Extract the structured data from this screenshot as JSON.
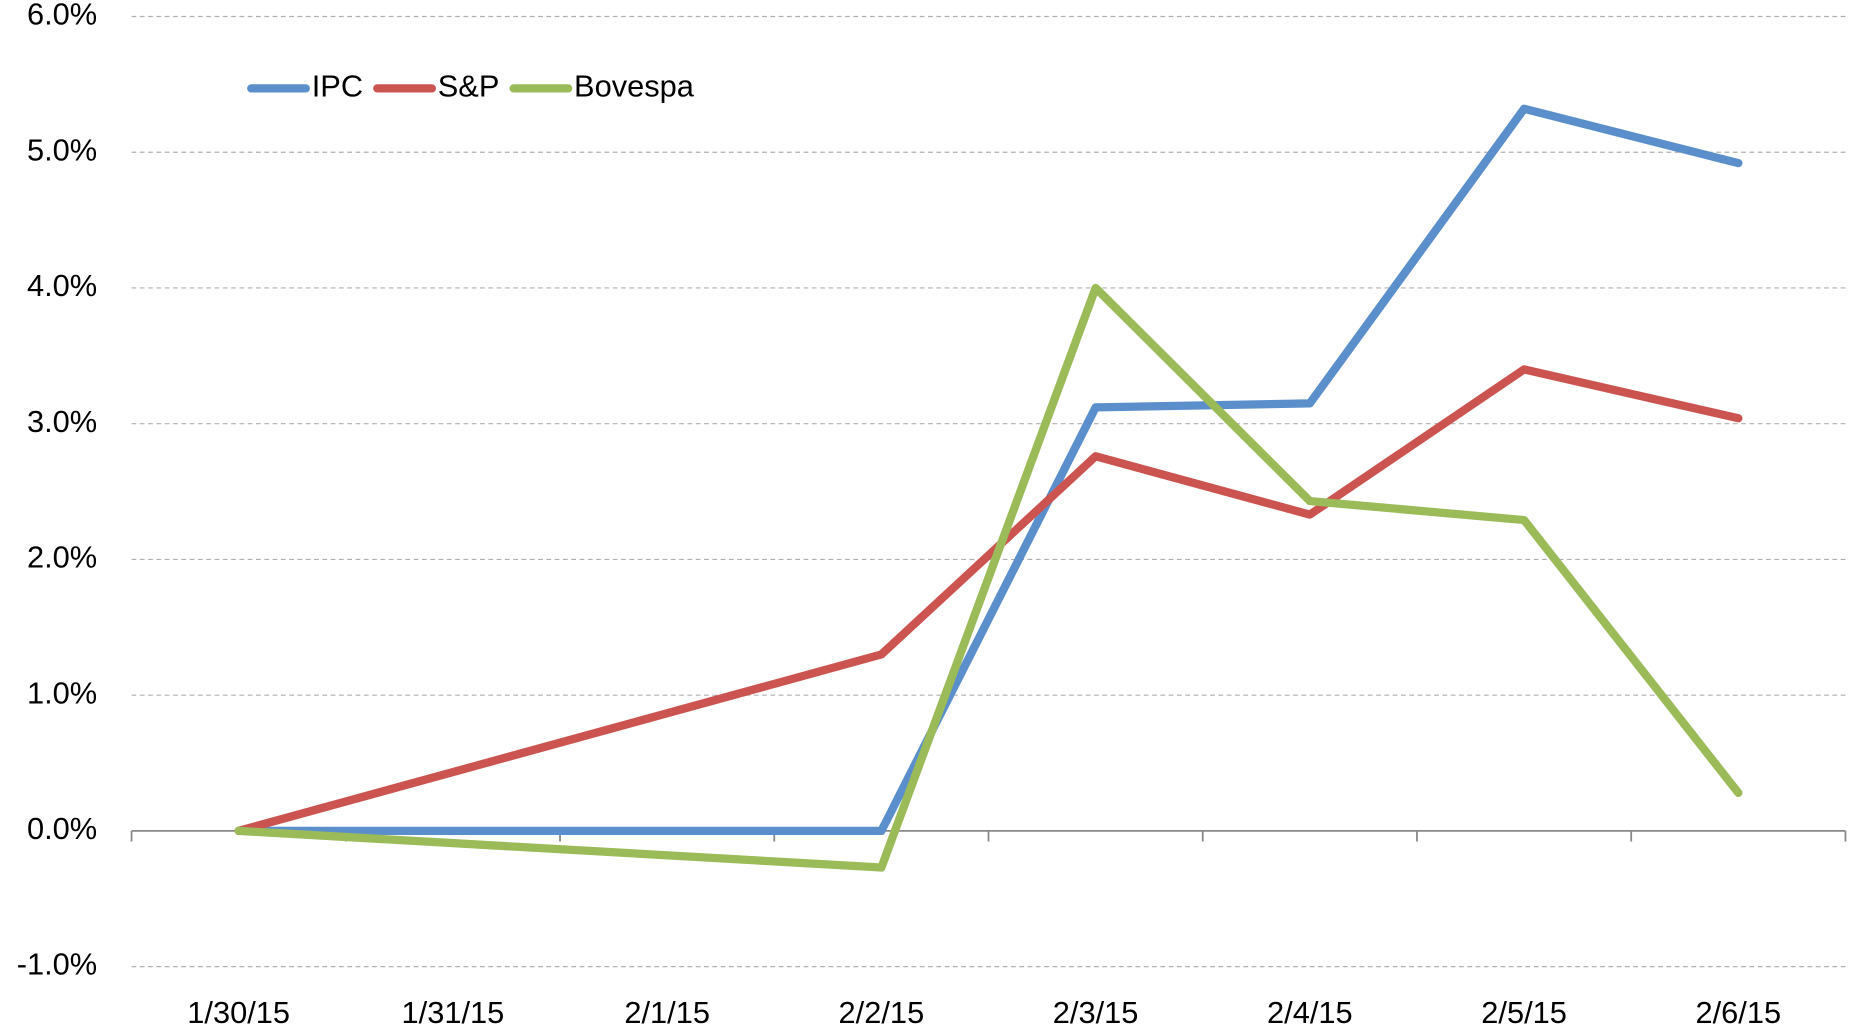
{
  "chart_data": {
    "type": "line",
    "xticks": [
      "1/30/15",
      "1/31/15",
      "2/1/15",
      "2/2/15",
      "2/3/15",
      "2/4/15",
      "2/5/15",
      "2/6/15"
    ],
    "x": [
      "1/30/15",
      "2/2/15",
      "2/3/15",
      "2/4/15",
      "2/5/15",
      "2/6/15"
    ],
    "series": [
      {
        "name": "IPC",
        "color": "#5b8fcb",
        "values": [
          0,
          0,
          3.12,
          3.15,
          5.32,
          4.92
        ]
      },
      {
        "name": "S&P",
        "color": "#cc5450",
        "values": [
          0,
          1.3,
          2.76,
          2.33,
          3.4,
          3.04
        ]
      },
      {
        "name": "Bovespa",
        "color": "#9bbb59",
        "values": [
          0,
          -0.27,
          4.0,
          2.43,
          2.29,
          0.28
        ]
      }
    ],
    "ylim": [
      -1,
      6
    ],
    "yticks": [
      {
        "value": -1,
        "label": "-1.0%"
      },
      {
        "value": 0,
        "label": "0.0%"
      },
      {
        "value": 1,
        "label": "1.0%"
      },
      {
        "value": 2,
        "label": "2.0%"
      },
      {
        "value": 3,
        "label": "3.0%"
      },
      {
        "value": 4,
        "label": "4.0%"
      },
      {
        "value": 5,
        "label": "5.0%"
      },
      {
        "value": 6,
        "label": "6.0%"
      }
    ],
    "grid": true,
    "legend": "top-left"
  }
}
